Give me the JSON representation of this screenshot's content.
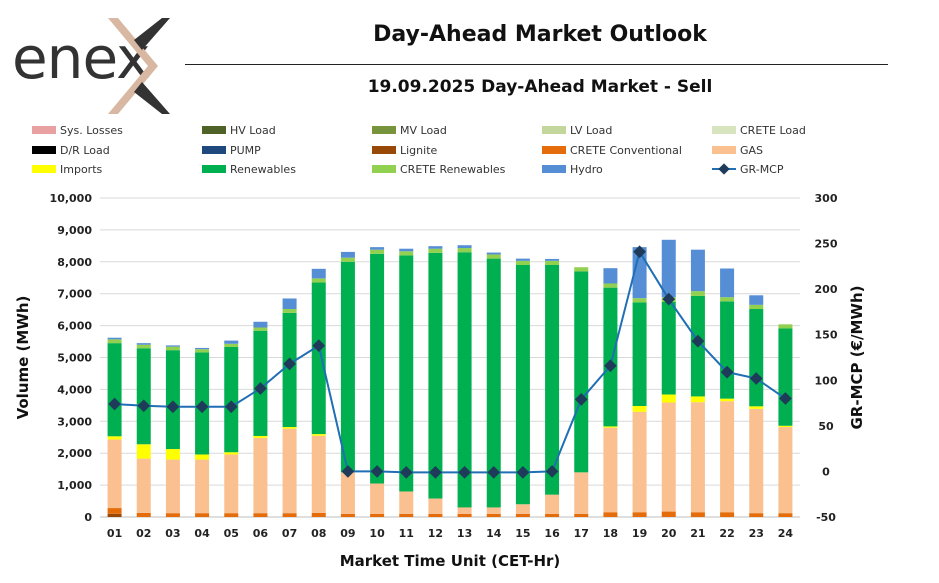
{
  "header": {
    "logo_text": "enex",
    "title": "Day-Ahead Market Outlook",
    "subtitle": "19.09.2025  Day-Ahead Market - Sell"
  },
  "chart_data": {
    "type": "bar",
    "stacked": true,
    "title": "19.09.2025  Day-Ahead Market - Sell",
    "xlabel": "Market Time Unit (CET-Hr)",
    "ylabel": "Volume (MWh)",
    "y2label": "GR-MCP (€/MWh)",
    "ylim": [
      0,
      10000
    ],
    "y2lim": [
      -50,
      300
    ],
    "yticks": [
      "0",
      "1,000",
      "2,000",
      "3,000",
      "4,000",
      "5,000",
      "6,000",
      "7,000",
      "8,000",
      "9,000",
      "10,000"
    ],
    "y2ticks": [
      "-50",
      "0",
      "50",
      "100",
      "150",
      "200",
      "250",
      "300"
    ],
    "grid": true,
    "categories": [
      "01",
      "02",
      "03",
      "04",
      "05",
      "06",
      "07",
      "08",
      "09",
      "10",
      "11",
      "12",
      "13",
      "14",
      "15",
      "16",
      "17",
      "18",
      "19",
      "20",
      "21",
      "22",
      "23",
      "24"
    ],
    "series": [
      {
        "name": "Sys. Losses",
        "color": "#e8a0a0",
        "values": [
          0,
          0,
          0,
          0,
          0,
          0,
          0,
          0,
          0,
          0,
          0,
          0,
          0,
          0,
          0,
          0,
          0,
          0,
          0,
          0,
          0,
          0,
          0,
          0
        ]
      },
      {
        "name": "HV Load",
        "color": "#4f6228",
        "values": [
          0,
          0,
          0,
          0,
          0,
          0,
          0,
          0,
          0,
          0,
          0,
          0,
          0,
          0,
          0,
          0,
          0,
          0,
          0,
          0,
          0,
          0,
          0,
          0
        ]
      },
      {
        "name": "MV Load",
        "color": "#77933c",
        "values": [
          0,
          0,
          0,
          0,
          0,
          0,
          0,
          0,
          0,
          0,
          0,
          0,
          0,
          0,
          0,
          0,
          0,
          0,
          0,
          0,
          0,
          0,
          0,
          0
        ]
      },
      {
        "name": "LV Load",
        "color": "#c3d69b",
        "values": [
          0,
          0,
          0,
          0,
          0,
          0,
          0,
          0,
          0,
          0,
          0,
          0,
          0,
          0,
          0,
          0,
          0,
          0,
          0,
          0,
          0,
          0,
          0,
          0
        ]
      },
      {
        "name": "CRETE Load",
        "color": "#d7e4bd",
        "values": [
          0,
          0,
          0,
          0,
          0,
          0,
          0,
          0,
          0,
          0,
          0,
          0,
          0,
          0,
          0,
          0,
          0,
          0,
          0,
          0,
          0,
          0,
          0,
          0
        ]
      },
      {
        "name": "D/R Load",
        "color": "#000000",
        "values": [
          0,
          0,
          0,
          0,
          0,
          0,
          0,
          0,
          0,
          0,
          0,
          0,
          0,
          0,
          0,
          0,
          0,
          0,
          0,
          0,
          0,
          0,
          0,
          0
        ]
      },
      {
        "name": "PUMP",
        "color": "#1f497d",
        "values": [
          0,
          0,
          0,
          0,
          0,
          0,
          0,
          0,
          0,
          0,
          0,
          0,
          0,
          0,
          0,
          0,
          0,
          0,
          0,
          0,
          0,
          0,
          0,
          0
        ]
      },
      {
        "name": "Lignite",
        "color": "#984807",
        "values": [
          100,
          0,
          0,
          0,
          0,
          0,
          0,
          0,
          0,
          0,
          0,
          0,
          0,
          0,
          0,
          0,
          0,
          0,
          0,
          0,
          0,
          0,
          0,
          0
        ]
      },
      {
        "name": "CRETE Conventional",
        "color": "#e46c0a",
        "values": [
          180,
          130,
          120,
          120,
          120,
          120,
          120,
          130,
          100,
          100,
          100,
          100,
          100,
          100,
          100,
          100,
          100,
          150,
          150,
          170,
          150,
          150,
          120,
          120
        ]
      },
      {
        "name": "GAS",
        "color": "#fac090",
        "values": [
          2150,
          1700,
          1680,
          1680,
          1840,
          2360,
          2650,
          2420,
          1300,
          950,
          700,
          480,
          200,
          200,
          300,
          600,
          1300,
          2650,
          3150,
          3420,
          3450,
          3480,
          3270,
          2700
        ]
      },
      {
        "name": "Imports",
        "color": "#ffff00",
        "values": [
          100,
          450,
          330,
          160,
          70,
          60,
          50,
          50,
          0,
          0,
          0,
          0,
          0,
          0,
          0,
          0,
          0,
          40,
          180,
          250,
          180,
          80,
          80,
          40
        ]
      },
      {
        "name": "Renewables",
        "color": "#00b050",
        "values": [
          2920,
          3010,
          3100,
          3200,
          3300,
          3300,
          3580,
          4750,
          6600,
          7200,
          7400,
          7700,
          8000,
          7800,
          7500,
          7200,
          6300,
          4350,
          3250,
          2900,
          3150,
          3050,
          3050,
          3050
        ]
      },
      {
        "name": "CRETE Renewables",
        "color": "#92d050",
        "values": [
          120,
          110,
          110,
          100,
          100,
          100,
          120,
          130,
          130,
          130,
          130,
          130,
          130,
          130,
          130,
          130,
          130,
          130,
          130,
          150,
          150,
          130,
          130,
          130
        ]
      },
      {
        "name": "Hydro",
        "color": "#558ed5",
        "values": [
          50,
          50,
          40,
          40,
          100,
          180,
          330,
          300,
          180,
          80,
          80,
          80,
          90,
          60,
          70,
          60,
          0,
          480,
          1600,
          1800,
          1300,
          900,
          300,
          0
        ]
      }
    ],
    "line": {
      "name": "GR-MCP",
      "color": "#1f6fb4",
      "marker_color": "#1f3b5a",
      "values": [
        74,
        72,
        71,
        71,
        71,
        91,
        118,
        138,
        0,
        0,
        -1,
        -1,
        -1,
        -1,
        -1,
        0,
        79,
        116,
        241,
        189,
        143,
        109,
        102,
        80
      ]
    },
    "legend_position": "top"
  }
}
